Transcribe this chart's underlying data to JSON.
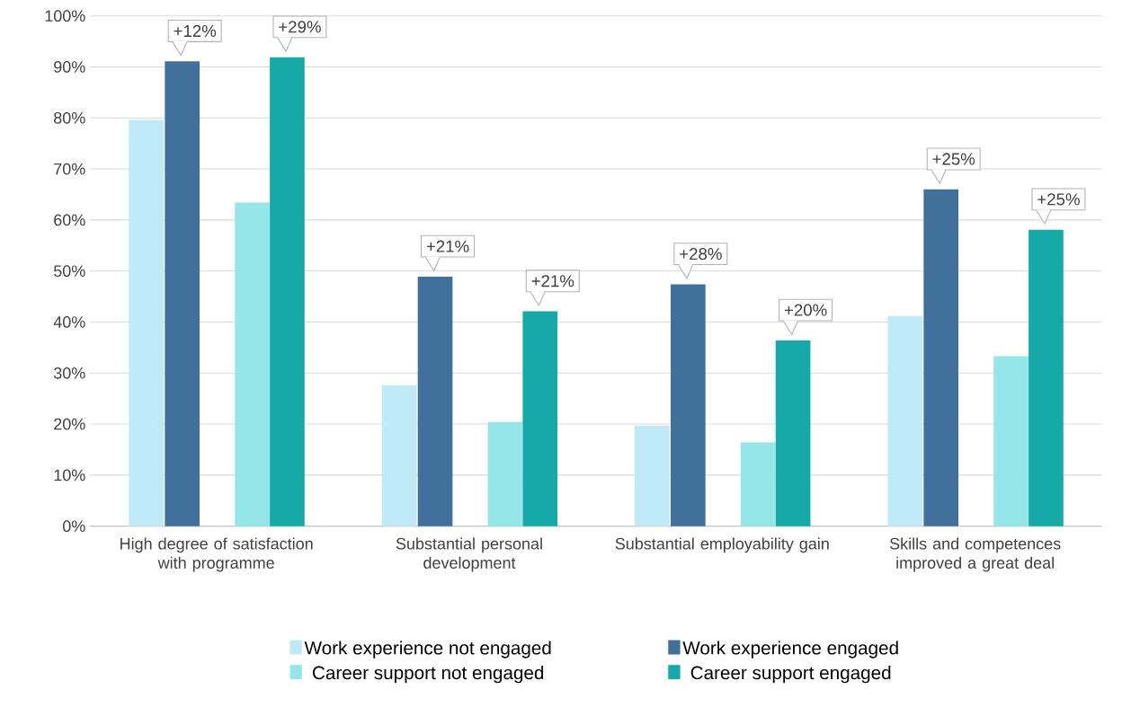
{
  "chart_data": {
    "type": "bar",
    "categories": [
      "High degree of satisfaction with programme",
      "Substantial personal development",
      "Substantial employability gain",
      "Skills and competences improved a great deal"
    ],
    "series": [
      {
        "name": "Work experience not engaged",
        "color": "#bfe9f7",
        "values": [
          79.6,
          27.6,
          19.7,
          41.2
        ]
      },
      {
        "name": "Work experience engaged",
        "color": "#41709c",
        "values": [
          91.1,
          48.9,
          47.4,
          66.0
        ]
      },
      {
        "name": "Career support not engaged",
        "color": "#95e6e8",
        "values": [
          63.4,
          20.4,
          16.4,
          33.3
        ]
      },
      {
        "name": "Career support engaged",
        "color": "#17a8a8",
        "values": [
          91.9,
          42.1,
          36.4,
          58.1
        ]
      }
    ],
    "ylim": [
      0,
      100
    ],
    "yticks": [
      {
        "value": 0,
        "label": "0%"
      },
      {
        "value": 10,
        "label": "10%"
      },
      {
        "value": 20,
        "label": "20%"
      },
      {
        "value": 30,
        "label": "30%"
      },
      {
        "value": 40,
        "label": "40%"
      },
      {
        "value": 50,
        "label": "50%"
      },
      {
        "value": 60,
        "label": "60%"
      },
      {
        "value": 70,
        "label": "70%"
      },
      {
        "value": 80,
        "label": "80%"
      },
      {
        "value": 90,
        "label": "90%"
      },
      {
        "value": 100,
        "label": "100%"
      }
    ],
    "grid": "y",
    "legend": "bottom",
    "annotations": [
      "+12%",
      "+29%",
      "+21%",
      "+21%",
      "+28%",
      "+20%",
      "+25%",
      "+25%"
    ]
  }
}
